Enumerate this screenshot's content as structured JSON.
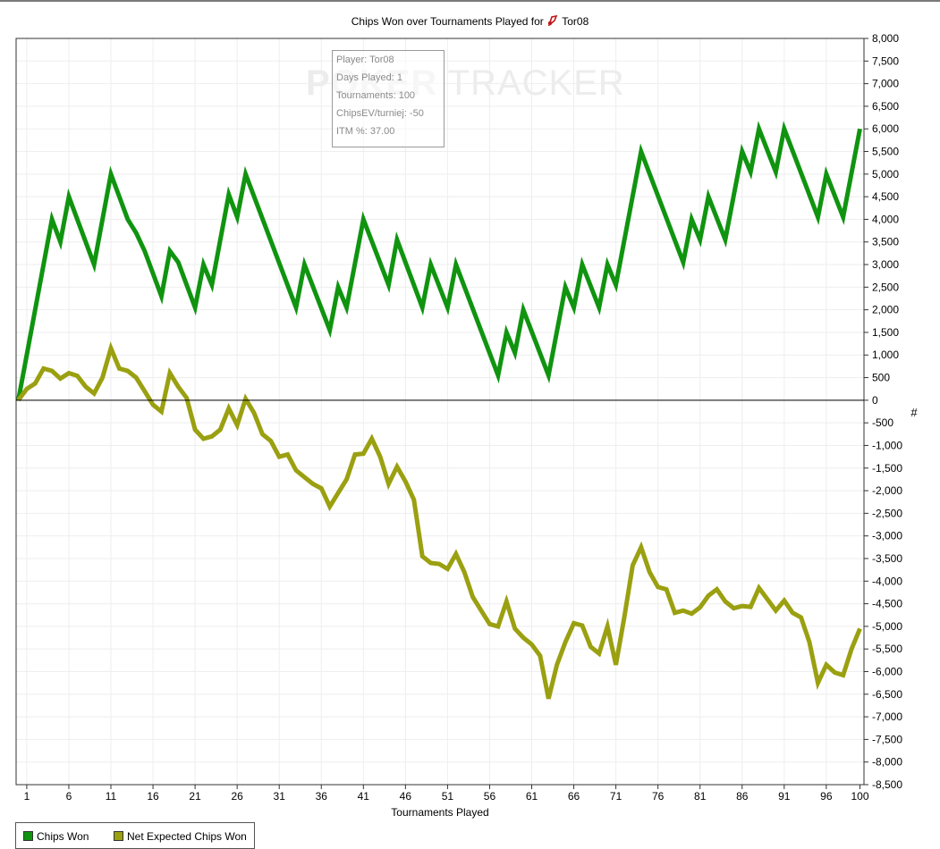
{
  "chart_data": {
    "type": "line",
    "title": "Chips Won over Tournaments Played for",
    "player_name": "Tor08",
    "xlabel": "Tournaments Played",
    "ylabel": "#",
    "x_ticks": [
      1,
      6,
      11,
      16,
      21,
      26,
      31,
      36,
      41,
      46,
      51,
      56,
      61,
      66,
      71,
      76,
      81,
      86,
      91,
      96,
      100
    ],
    "y_ticks": [
      8000,
      7500,
      7000,
      6500,
      6000,
      5500,
      5000,
      4500,
      4000,
      3500,
      3000,
      2500,
      2000,
      1500,
      1000,
      500,
      0,
      -500,
      -1000,
      -1500,
      -2000,
      -2500,
      -3000,
      -3500,
      -4000,
      -4500,
      -5000,
      -5500,
      -6000,
      -6500,
      -7000,
      -7500,
      -8000,
      -8500
    ],
    "y_tick_labels": [
      "8,000",
      "7,500",
      "7,000",
      "6,500",
      "6,000",
      "5,500",
      "5,000",
      "4,500",
      "4,000",
      "3,500",
      "3,000",
      "2,500",
      "2,000",
      "1,500",
      "1,000",
      "500",
      "0",
      "-500",
      "-1,000",
      "-1,500",
      "-2,000",
      "-2,500",
      "-3,000",
      "-3,500",
      "-4,000",
      "-4,500",
      "-5,000",
      "-5,500",
      "-6,000",
      "-6,500",
      "-7,000",
      "-7,500",
      "-8,000",
      "-8,500"
    ],
    "xlim": [
      0,
      100
    ],
    "ylim": [
      -8500,
      8000
    ],
    "grid": true,
    "legend_position": "bottom-left",
    "series": [
      {
        "name": "Chips Won",
        "color": "#109410",
        "points": [
          [
            0,
            0
          ],
          [
            4,
            4000
          ],
          [
            5,
            3500
          ],
          [
            6,
            4500
          ],
          [
            9,
            3000
          ],
          [
            11,
            5000
          ],
          [
            13,
            4000
          ],
          [
            14,
            3700
          ],
          [
            15,
            3300
          ],
          [
            17,
            2300
          ],
          [
            18,
            3300
          ],
          [
            19,
            3050
          ],
          [
            21,
            2050
          ],
          [
            22,
            3000
          ],
          [
            23,
            2550
          ],
          [
            25,
            4550
          ],
          [
            26,
            4050
          ],
          [
            27,
            5000
          ],
          [
            33,
            2050
          ],
          [
            34,
            3000
          ],
          [
            37,
            1550
          ],
          [
            38,
            2500
          ],
          [
            39,
            2050
          ],
          [
            41,
            4000
          ],
          [
            44,
            2550
          ],
          [
            45,
            3550
          ],
          [
            48,
            2050
          ],
          [
            49,
            3000
          ],
          [
            51,
            2050
          ],
          [
            52,
            3000
          ],
          [
            57,
            550
          ],
          [
            58,
            1500
          ],
          [
            59,
            1050
          ],
          [
            60,
            2000
          ],
          [
            63,
            550
          ],
          [
            65,
            2500
          ],
          [
            66,
            2050
          ],
          [
            67,
            3000
          ],
          [
            69,
            2050
          ],
          [
            70,
            3000
          ],
          [
            71,
            2550
          ],
          [
            74,
            5500
          ],
          [
            79,
            3050
          ],
          [
            80,
            4000
          ],
          [
            81,
            3550
          ],
          [
            82,
            4500
          ],
          [
            84,
            3550
          ],
          [
            86,
            5500
          ],
          [
            87,
            5050
          ],
          [
            88,
            6000
          ],
          [
            90,
            5050
          ],
          [
            91,
            6000
          ],
          [
            95,
            4050
          ],
          [
            96,
            5000
          ],
          [
            98,
            4050
          ],
          [
            100,
            6000
          ]
        ]
      },
      {
        "name": "Net Expected Chips Won",
        "color": "#9aa010",
        "points": [
          [
            0,
            0
          ],
          [
            1,
            250
          ],
          [
            2,
            370
          ],
          [
            3,
            700
          ],
          [
            4,
            650
          ],
          [
            5,
            480
          ],
          [
            6,
            600
          ],
          [
            7,
            540
          ],
          [
            8,
            300
          ],
          [
            9,
            150
          ],
          [
            10,
            500
          ],
          [
            11,
            1150
          ],
          [
            12,
            700
          ],
          [
            13,
            650
          ],
          [
            14,
            500
          ],
          [
            15,
            200
          ],
          [
            16,
            -100
          ],
          [
            17,
            -250
          ],
          [
            18,
            600
          ],
          [
            19,
            300
          ],
          [
            20,
            50
          ],
          [
            21,
            -650
          ],
          [
            22,
            -850
          ],
          [
            23,
            -800
          ],
          [
            24,
            -650
          ],
          [
            25,
            -180
          ],
          [
            26,
            -550
          ],
          [
            27,
            30
          ],
          [
            28,
            -280
          ],
          [
            29,
            -750
          ],
          [
            30,
            -900
          ],
          [
            31,
            -1250
          ],
          [
            32,
            -1200
          ],
          [
            33,
            -1550
          ],
          [
            34,
            -1700
          ],
          [
            35,
            -1850
          ],
          [
            36,
            -1950
          ],
          [
            37,
            -2350
          ],
          [
            38,
            -2050
          ],
          [
            39,
            -1750
          ],
          [
            40,
            -1200
          ],
          [
            41,
            -1180
          ],
          [
            42,
            -850
          ],
          [
            43,
            -1250
          ],
          [
            44,
            -1850
          ],
          [
            45,
            -1470
          ],
          [
            46,
            -1800
          ],
          [
            47,
            -2200
          ],
          [
            48,
            -3450
          ],
          [
            49,
            -3600
          ],
          [
            50,
            -3620
          ],
          [
            51,
            -3730
          ],
          [
            52,
            -3400
          ],
          [
            53,
            -3800
          ],
          [
            54,
            -4350
          ],
          [
            55,
            -4650
          ],
          [
            56,
            -4950
          ],
          [
            57,
            -5000
          ],
          [
            58,
            -4450
          ],
          [
            59,
            -5050
          ],
          [
            60,
            -5250
          ],
          [
            61,
            -5400
          ],
          [
            62,
            -5650
          ],
          [
            63,
            -6600
          ],
          [
            64,
            -5850
          ],
          [
            65,
            -5350
          ],
          [
            66,
            -4930
          ],
          [
            67,
            -4980
          ],
          [
            68,
            -5450
          ],
          [
            69,
            -5600
          ],
          [
            70,
            -5000
          ],
          [
            71,
            -5850
          ],
          [
            72,
            -4800
          ],
          [
            73,
            -3650
          ],
          [
            74,
            -3250
          ],
          [
            75,
            -3800
          ],
          [
            76,
            -4130
          ],
          [
            77,
            -4180
          ],
          [
            78,
            -4700
          ],
          [
            79,
            -4650
          ],
          [
            80,
            -4720
          ],
          [
            81,
            -4580
          ],
          [
            82,
            -4320
          ],
          [
            83,
            -4180
          ],
          [
            84,
            -4450
          ],
          [
            85,
            -4600
          ],
          [
            86,
            -4550
          ],
          [
            87,
            -4570
          ],
          [
            88,
            -4150
          ],
          [
            89,
            -4400
          ],
          [
            90,
            -4650
          ],
          [
            91,
            -4430
          ],
          [
            92,
            -4700
          ],
          [
            93,
            -4800
          ],
          [
            94,
            -5350
          ],
          [
            95,
            -6250
          ],
          [
            96,
            -5850
          ],
          [
            97,
            -6020
          ],
          [
            98,
            -6080
          ],
          [
            99,
            -5500
          ],
          [
            100,
            -5050
          ]
        ]
      }
    ]
  },
  "infobox": {
    "player": "Player: Tor08",
    "days": "Days Played: 1",
    "tournaments": "Tournaments: 100",
    "chipsev": "ChipsEV/turniej: -50",
    "itm": "ITM %: 37.00"
  },
  "watermark": {
    "word1": "POKER",
    "word2": "TRACKER"
  },
  "legend": [
    {
      "label": "Chips Won",
      "color": "#109410"
    },
    {
      "label": "Net Expected Chips Won",
      "color": "#9aa010"
    }
  ]
}
